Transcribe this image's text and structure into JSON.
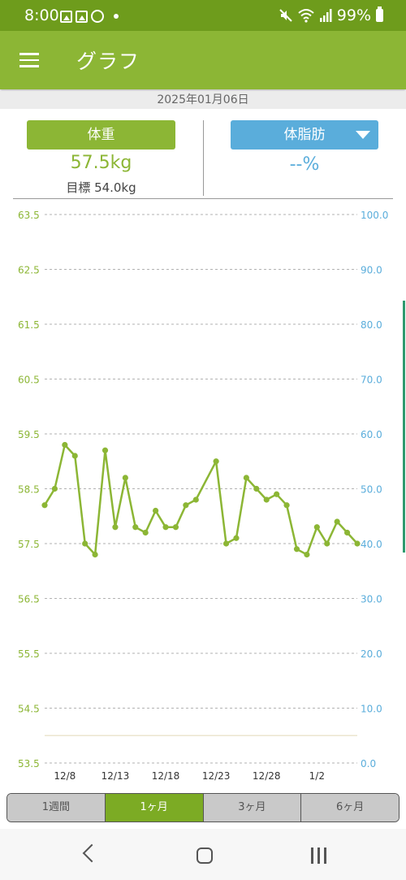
{
  "status_bar": {
    "time": "8:00",
    "battery": "99%"
  },
  "app_bar": {
    "title": "グラフ"
  },
  "date": "2025年01月06日",
  "weight": {
    "button_label": "体重",
    "value": "57.5kg",
    "goal": "目標 54.0kg"
  },
  "body_fat": {
    "button_label": "体脂肪",
    "value": "--%"
  },
  "range_tabs": [
    {
      "label": "1週間",
      "active": false
    },
    {
      "label": "1ヶ月",
      "active": true
    },
    {
      "label": "3ヶ月",
      "active": false
    },
    {
      "label": "6ヶ月",
      "active": false
    }
  ],
  "colors": {
    "primary": "#8cb635",
    "status": "#6e9c1c",
    "accent_blue": "#5aaddb"
  },
  "chart_data": {
    "type": "line",
    "left_axis": {
      "ticks": [
        "63.5",
        "62.5",
        "61.5",
        "60.5",
        "59.5",
        "58.5",
        "57.5",
        "56.5",
        "55.5",
        "54.5",
        "53.5"
      ],
      "range": [
        53.5,
        63.5
      ]
    },
    "right_axis": {
      "ticks": [
        "100.0",
        "90.0",
        "80.0",
        "70.0",
        "60.0",
        "50.0",
        "40.0",
        "30.0",
        "20.0",
        "10.0",
        "0.0"
      ],
      "range": [
        0,
        100
      ]
    },
    "x_ticks": [
      {
        "label": "12/8",
        "day": 2
      },
      {
        "label": "12/13",
        "day": 7
      },
      {
        "label": "12/18",
        "day": 12
      },
      {
        "label": "12/23",
        "day": 17
      },
      {
        "label": "12/28",
        "day": 22
      },
      {
        "label": "1/2",
        "day": 27
      }
    ],
    "x_range": [
      0,
      31
    ],
    "goal_value": 54.0,
    "series": [
      {
        "values": [
          [
            0,
            58.2
          ],
          [
            1,
            58.5
          ],
          [
            2,
            59.3
          ],
          [
            3,
            59.1
          ],
          [
            4,
            57.5
          ],
          [
            5,
            57.3
          ],
          [
            6,
            59.2
          ],
          [
            7,
            57.8
          ],
          [
            8,
            58.7
          ],
          [
            9,
            57.8
          ],
          [
            10,
            57.7
          ],
          [
            11,
            58.1
          ],
          [
            12,
            57.8
          ],
          [
            13,
            57.8
          ],
          [
            14,
            58.2
          ],
          [
            15,
            58.3
          ],
          [
            17,
            59.0
          ],
          [
            18,
            57.5
          ],
          [
            19,
            57.6
          ],
          [
            20,
            58.7
          ],
          [
            21,
            58.5
          ],
          [
            22,
            58.3
          ],
          [
            23,
            58.4
          ],
          [
            24,
            58.2
          ],
          [
            25,
            57.4
          ],
          [
            26,
            57.3
          ],
          [
            27,
            57.8
          ],
          [
            28,
            57.5
          ],
          [
            29,
            57.9
          ],
          [
            30,
            57.7
          ],
          [
            31,
            57.5
          ]
        ]
      }
    ]
  }
}
